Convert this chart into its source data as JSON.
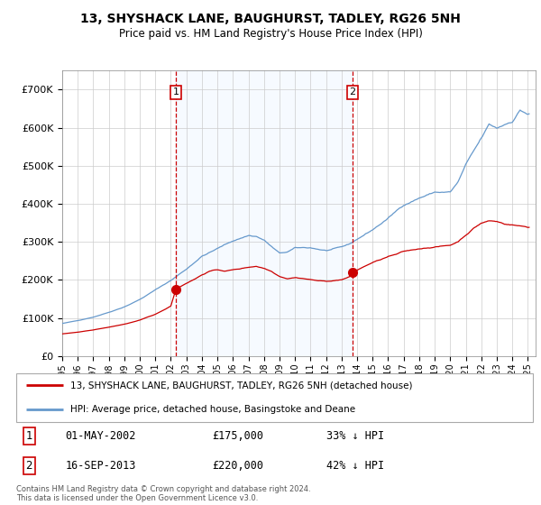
{
  "title": "13, SHYSHACK LANE, BAUGHURST, TADLEY, RG26 5NH",
  "subtitle": "Price paid vs. HM Land Registry's House Price Index (HPI)",
  "legend_label_red": "13, SHYSHACK LANE, BAUGHURST, TADLEY, RG26 5NH (detached house)",
  "legend_label_blue": "HPI: Average price, detached house, Basingstoke and Deane",
  "annotation1_label": "1",
  "annotation1_date": "01-MAY-2002",
  "annotation1_price": "£175,000",
  "annotation1_hpi": "33% ↓ HPI",
  "annotation2_label": "2",
  "annotation2_date": "16-SEP-2013",
  "annotation2_price": "£220,000",
  "annotation2_hpi": "42% ↓ HPI",
  "footer": "Contains HM Land Registry data © Crown copyright and database right 2024.\nThis data is licensed under the Open Government Licence v3.0.",
  "red_color": "#cc0000",
  "blue_color": "#6699cc",
  "shade_color": "#ddeeff",
  "annotation_box_color": "#cc0000",
  "ylim": [
    0,
    750000
  ],
  "yticks": [
    0,
    100000,
    200000,
    300000,
    400000,
    500000,
    600000,
    700000
  ],
  "xlim_start": 1995.0,
  "xlim_end": 2025.5,
  "sale1_x": 2002.33,
  "sale1_y": 175000,
  "sale2_x": 2013.71,
  "sale2_y": 220000
}
